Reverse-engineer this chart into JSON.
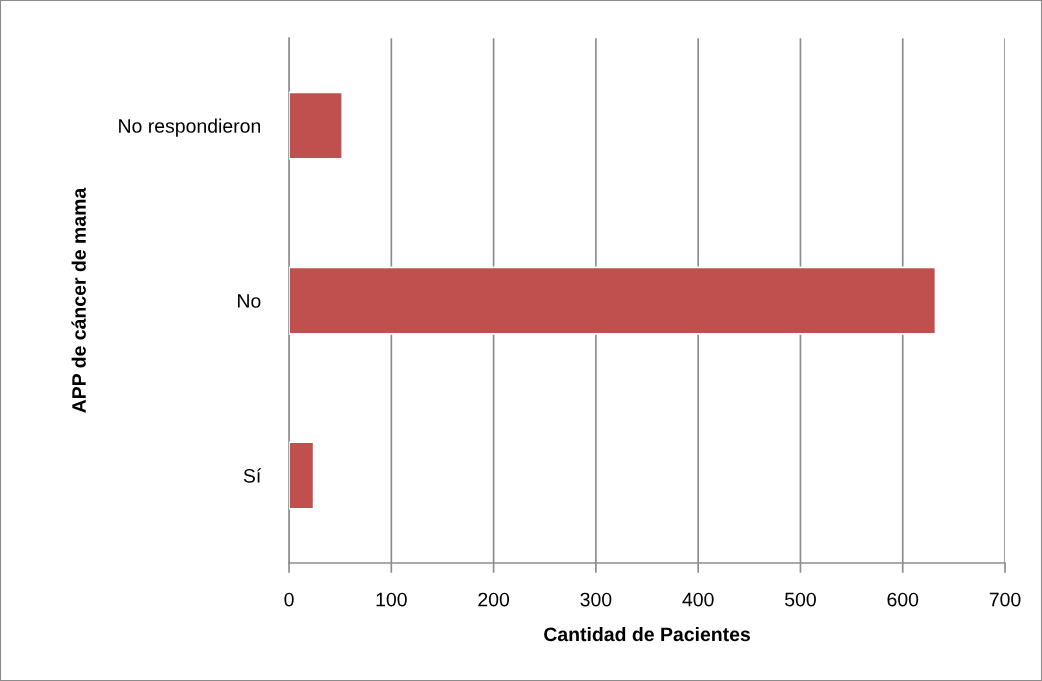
{
  "chart_data": {
    "type": "bar",
    "orientation": "horizontal",
    "categories": [
      "No respondieron",
      "No",
      "Sí"
    ],
    "values": [
      52,
      632,
      24
    ],
    "color": "#c0504d",
    "xlim": [
      0,
      700
    ],
    "xticks": [
      0,
      100,
      200,
      300,
      400,
      500,
      600,
      700
    ],
    "xlabel": "Cantidad de Pacientes",
    "ylabel": "APP de cáncer de mama",
    "grid": "x"
  }
}
